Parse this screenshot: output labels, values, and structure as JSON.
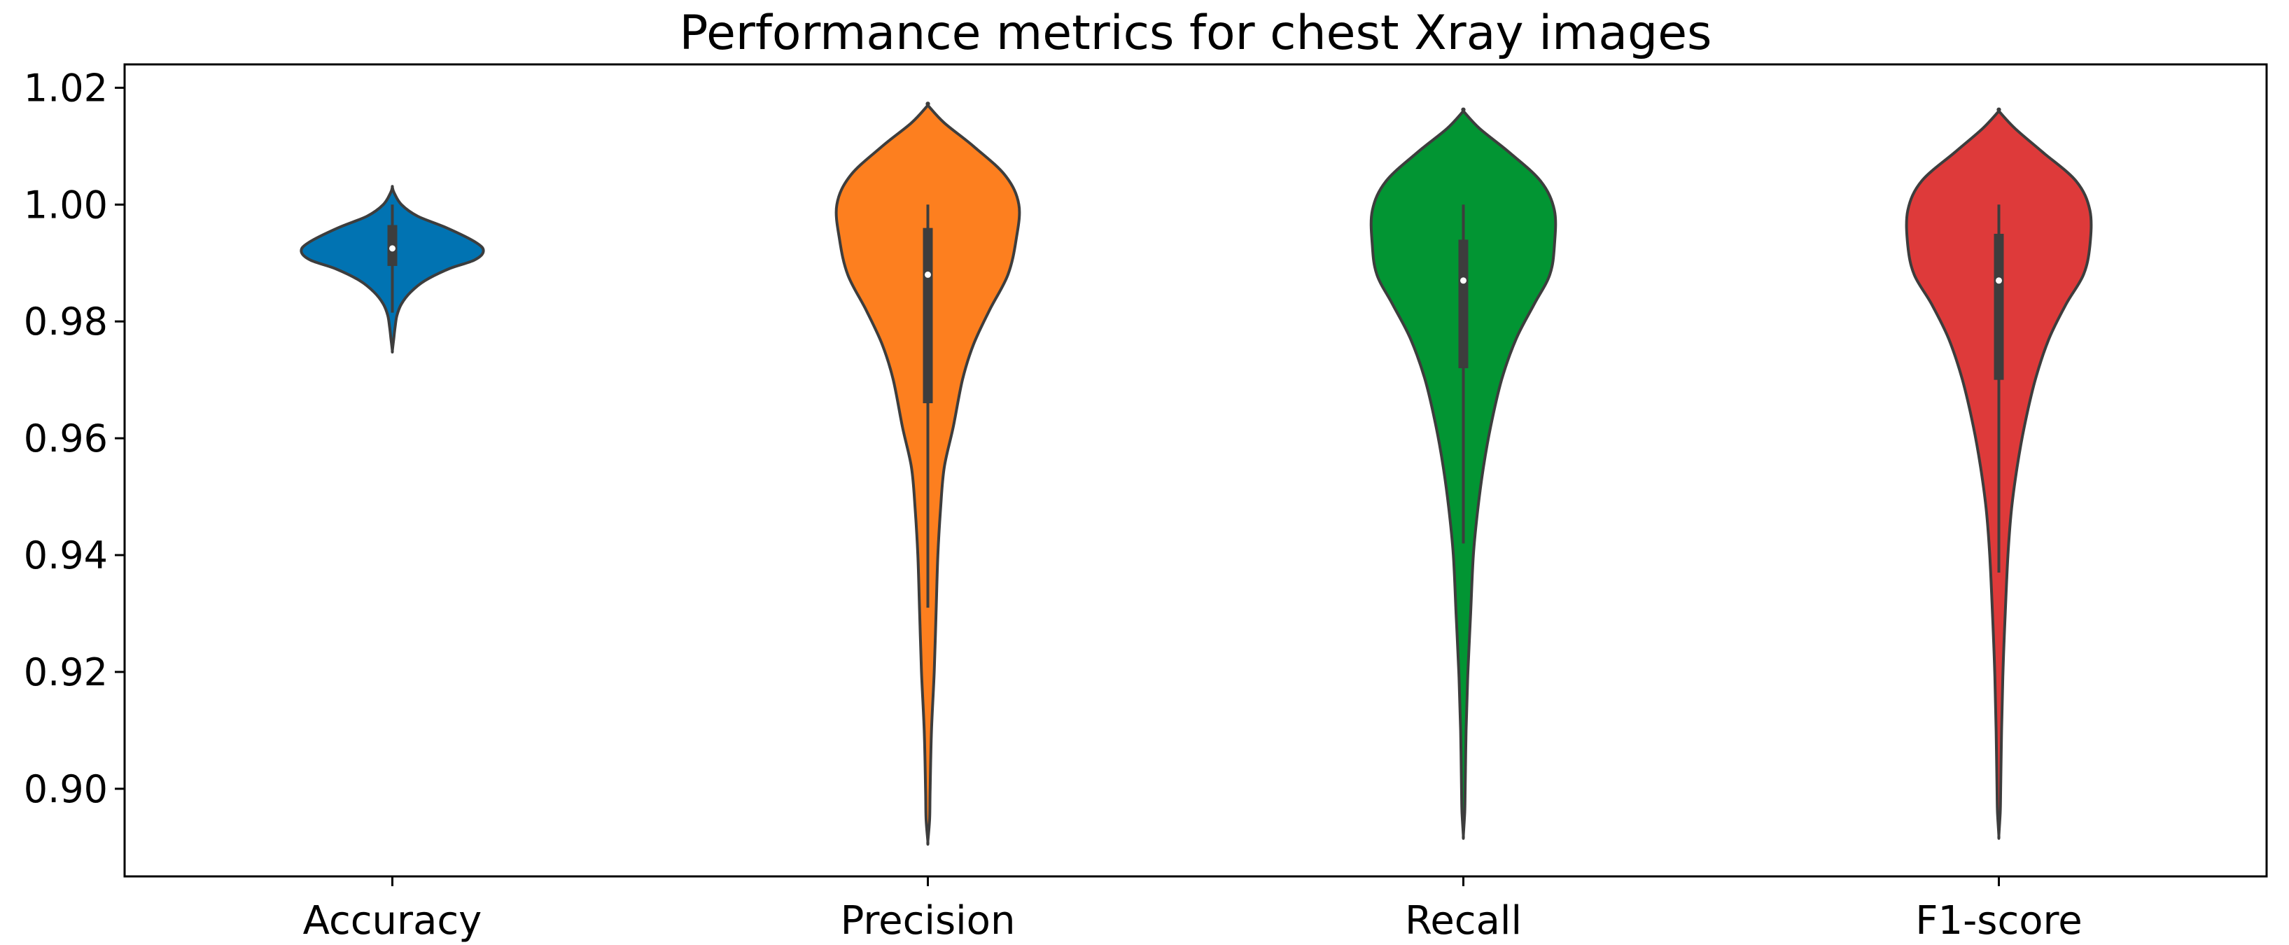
{
  "chart_data": {
    "type": "violin",
    "title": "Performance metrics for chest Xray images",
    "xlabel": "",
    "ylabel": "",
    "ylim": [
      0.885,
      1.024
    ],
    "yticks": [
      "0.90",
      "0.92",
      "0.94",
      "0.96",
      "0.98",
      "1.00",
      "1.02"
    ],
    "grid": false,
    "categories": [
      "Accuracy",
      "Precision",
      "Recall",
      "F1-score"
    ],
    "series": [
      {
        "category": "Accuracy",
        "color": "#0173b2",
        "min": 0.9815,
        "q1": 0.9895,
        "median": 0.9925,
        "q3": 0.9965,
        "max": 1.0,
        "range": [
          0.975,
          1.003
        ],
        "profile": [
          [
            1.003,
            0.0
          ],
          [
            1.002,
            0.02
          ],
          [
            1.0,
            0.1
          ],
          [
            0.998,
            0.28
          ],
          [
            0.996,
            0.6
          ],
          [
            0.9935,
            0.92
          ],
          [
            0.992,
            1.0
          ],
          [
            0.9905,
            0.9
          ],
          [
            0.989,
            0.62
          ],
          [
            0.987,
            0.36
          ],
          [
            0.985,
            0.2
          ],
          [
            0.983,
            0.1
          ],
          [
            0.981,
            0.05
          ],
          [
            0.979,
            0.03
          ],
          [
            0.977,
            0.015
          ],
          [
            0.975,
            0.0
          ]
        ]
      },
      {
        "category": "Precision",
        "color": "#fd7f1f",
        "min": 0.931,
        "q1": 0.966,
        "median": 0.988,
        "q3": 0.996,
        "max": 1.0,
        "range": [
          0.891,
          1.017
        ],
        "profile": [
          [
            1.017,
            0.0
          ],
          [
            1.014,
            0.18
          ],
          [
            1.01,
            0.5
          ],
          [
            1.005,
            0.85
          ],
          [
            1.0,
            1.0
          ],
          [
            0.994,
            0.97
          ],
          [
            0.988,
            0.88
          ],
          [
            0.982,
            0.68
          ],
          [
            0.976,
            0.5
          ],
          [
            0.97,
            0.38
          ],
          [
            0.962,
            0.28
          ],
          [
            0.955,
            0.18
          ],
          [
            0.948,
            0.14
          ],
          [
            0.94,
            0.11
          ],
          [
            0.93,
            0.09
          ],
          [
            0.92,
            0.07
          ],
          [
            0.91,
            0.04
          ],
          [
            0.9,
            0.025
          ],
          [
            0.895,
            0.02
          ],
          [
            0.891,
            0.0
          ]
        ]
      },
      {
        "category": "Recall",
        "color": "#029533",
        "min": 0.942,
        "q1": 0.972,
        "median": 0.987,
        "q3": 0.994,
        "max": 1.0,
        "range": [
          0.892,
          1.016
        ],
        "profile": [
          [
            1.016,
            0.0
          ],
          [
            1.013,
            0.18
          ],
          [
            1.009,
            0.5
          ],
          [
            1.004,
            0.85
          ],
          [
            0.999,
            1.0
          ],
          [
            0.993,
            1.0
          ],
          [
            0.988,
            0.95
          ],
          [
            0.983,
            0.78
          ],
          [
            0.977,
            0.58
          ],
          [
            0.97,
            0.42
          ],
          [
            0.962,
            0.3
          ],
          [
            0.955,
            0.22
          ],
          [
            0.948,
            0.16
          ],
          [
            0.94,
            0.11
          ],
          [
            0.93,
            0.08
          ],
          [
            0.92,
            0.05
          ],
          [
            0.91,
            0.03
          ],
          [
            0.9,
            0.02
          ],
          [
            0.896,
            0.015
          ],
          [
            0.892,
            0.0
          ]
        ]
      },
      {
        "category": "F1-score",
        "color": "#de3a3a",
        "min": 0.937,
        "q1": 0.97,
        "median": 0.987,
        "q3": 0.995,
        "max": 1.0,
        "range": [
          0.892,
          1.016
        ],
        "profile": [
          [
            1.016,
            0.0
          ],
          [
            1.013,
            0.18
          ],
          [
            1.009,
            0.48
          ],
          [
            1.004,
            0.85
          ],
          [
            0.999,
            1.0
          ],
          [
            0.993,
            1.0
          ],
          [
            0.988,
            0.93
          ],
          [
            0.983,
            0.74
          ],
          [
            0.977,
            0.55
          ],
          [
            0.97,
            0.4
          ],
          [
            0.962,
            0.28
          ],
          [
            0.955,
            0.2
          ],
          [
            0.948,
            0.14
          ],
          [
            0.94,
            0.1
          ],
          [
            0.93,
            0.07
          ],
          [
            0.92,
            0.045
          ],
          [
            0.91,
            0.03
          ],
          [
            0.9,
            0.02
          ],
          [
            0.896,
            0.015
          ],
          [
            0.892,
            0.0
          ]
        ]
      }
    ]
  }
}
